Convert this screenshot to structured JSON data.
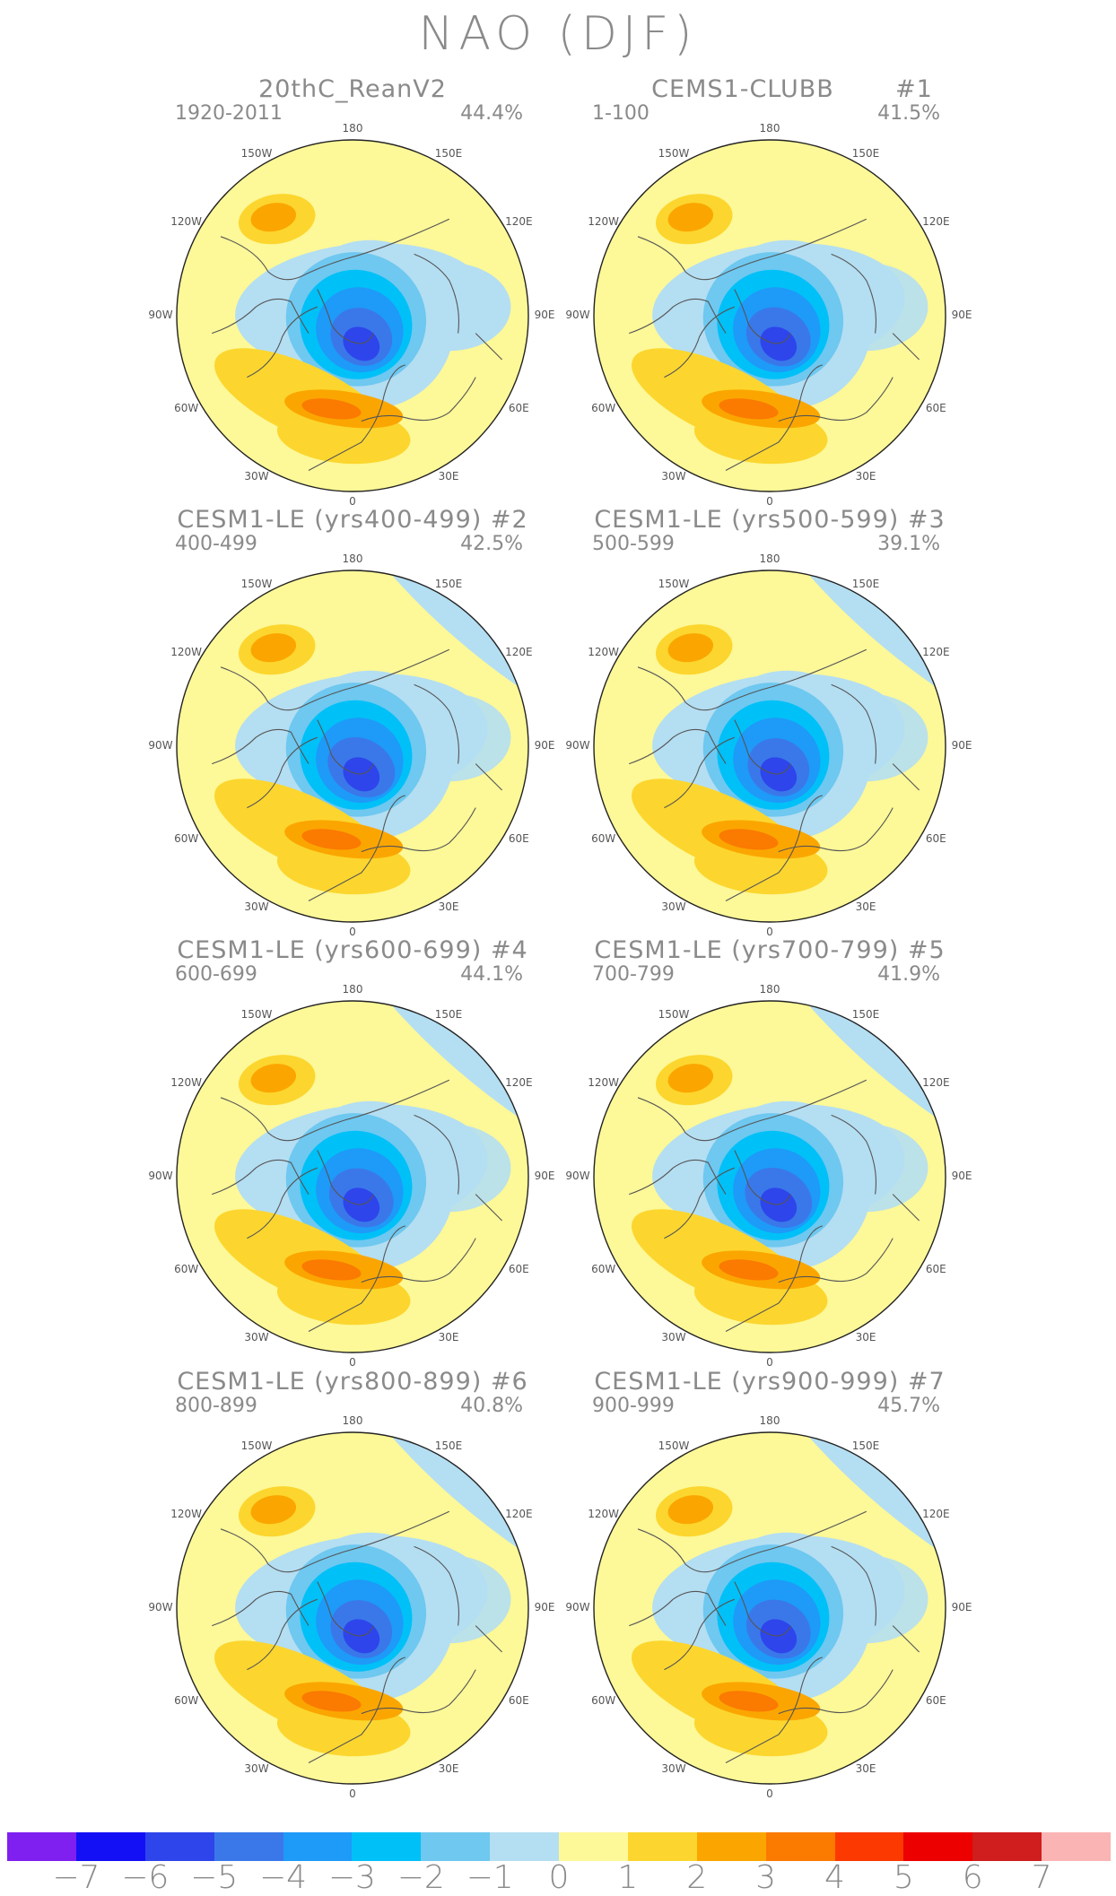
{
  "title": "NAO (DJF)",
  "panels": [
    {
      "title": "20thC_ReanV2",
      "member": "",
      "period": "1920-2011",
      "variance": "44.4%"
    },
    {
      "title": "CEMS1-CLUBB",
      "member": "#1",
      "period": "1-100",
      "variance": "41.5%"
    },
    {
      "title": "CESM1-LE (yrs400-499) #2",
      "member": "",
      "period": "400-499",
      "variance": "42.5%"
    },
    {
      "title": "CESM1-LE (yrs500-599) #3",
      "member": "",
      "period": "500-599",
      "variance": "39.1%"
    },
    {
      "title": "CESM1-LE (yrs600-699) #4",
      "member": "",
      "period": "600-699",
      "variance": "44.1%"
    },
    {
      "title": "CESM1-LE (yrs700-799) #5",
      "member": "",
      "period": "700-799",
      "variance": "41.9%"
    },
    {
      "title": "CESM1-LE (yrs800-899) #6",
      "member": "",
      "period": "800-899",
      "variance": "40.8%"
    },
    {
      "title": "CESM1-LE (yrs900-999) #7",
      "member": "",
      "period": "900-999",
      "variance": "45.7%"
    }
  ],
  "longitude_labels": [
    "180",
    "150E",
    "120E",
    "90E",
    "60E",
    "30E",
    "0",
    "30W",
    "60W",
    "90W",
    "120W",
    "150W"
  ],
  "colorbar": {
    "colors": [
      "#7f1ff0",
      "#1410f5",
      "#2e45eb",
      "#3a78ea",
      "#1e9af8",
      "#00c0f8",
      "#6ec8f0",
      "#b4def2",
      "#fdf898",
      "#fcd62e",
      "#fba600",
      "#fb7a00",
      "#fb3900",
      "#ec0000",
      "#d01d1d",
      "#fbb4b4"
    ],
    "labels": [
      "−7",
      "−6",
      "−5",
      "−4",
      "−3",
      "−2",
      "−1",
      "0",
      "1",
      "2",
      "3",
      "4",
      "5",
      "6",
      "7"
    ]
  }
}
